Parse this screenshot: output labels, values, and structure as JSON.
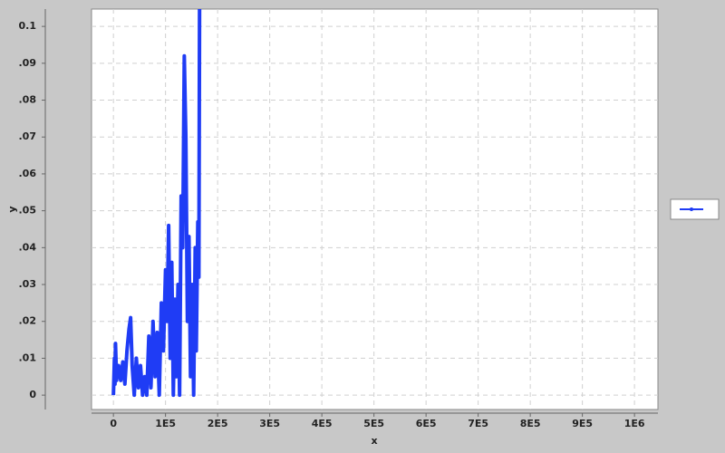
{
  "chart_data": {
    "type": "line",
    "x_label": "x",
    "y_label": "y",
    "x": [
      0,
      2000,
      3000,
      4000,
      6000,
      10000,
      14000,
      18000,
      22000,
      26000,
      30000,
      33000,
      36000,
      40000,
      44000,
      48000,
      52000,
      56000,
      60000,
      64000,
      68000,
      72000,
      76000,
      80000,
      84000,
      88000,
      92000,
      96000,
      100000,
      103000,
      106000,
      109000,
      112000,
      115000,
      118000,
      121000,
      124000,
      127000,
      130000,
      133000,
      136000,
      139000,
      142000,
      145000,
      148000,
      151000,
      154000,
      157000,
      159000,
      162000,
      164000,
      167000
    ],
    "series": [
      {
        "color": "#1f3cf5",
        "values": [
          0,
          0.01,
          0.003,
          0.014,
          0.004,
          0.008,
          0.004,
          0.009,
          0.003,
          0.012,
          0.018,
          0.021,
          0.008,
          0,
          0.01,
          0.002,
          0.008,
          0,
          0.005,
          0,
          0.016,
          0.002,
          0.02,
          0.005,
          0.017,
          0,
          0.025,
          0.012,
          0.034,
          0.02,
          0.046,
          0.01,
          0.036,
          0,
          0.026,
          0.005,
          0.03,
          0,
          0.054,
          0.04,
          0.092,
          0.07,
          0.02,
          0.043,
          0.005,
          0.03,
          0,
          0.04,
          0.012,
          0.047,
          0.032,
          0.2
        ]
      }
    ],
    "xlim": [
      -42000,
      1045000
    ],
    "xticks": [
      0,
      {
        "value": 100000,
        "label": "1E5"
      },
      {
        "value": 200000,
        "label": "2E5"
      },
      {
        "value": 300000,
        "label": "3E5"
      },
      {
        "value": 400000,
        "label": "4E5"
      },
      {
        "value": 500000,
        "label": "5E5"
      },
      {
        "value": 600000,
        "label": "6E5"
      },
      {
        "value": 700000,
        "label": "7E5"
      },
      {
        "value": 800000,
        "label": "8E5"
      },
      {
        "value": 900000,
        "label": "9E5"
      },
      {
        "value": 1000000,
        "label": "1E6"
      }
    ],
    "ylim": [
      -0.0039,
      0.1047
    ],
    "yticks": [
      0,
      {
        "value": 0.01,
        "label": ".01"
      },
      {
        "value": 0.02,
        "label": ".02"
      },
      {
        "value": 0.03,
        "label": ".03"
      },
      {
        "value": 0.04,
        "label": ".04"
      },
      {
        "value": 0.05,
        "label": ".05"
      },
      {
        "value": 0.06,
        "label": ".06"
      },
      {
        "value": 0.07,
        "label": ".07"
      },
      {
        "value": 0.08,
        "label": ".08"
      },
      {
        "value": 0.09,
        "label": ".09"
      },
      0.1
    ],
    "grid": true,
    "legend": "right"
  }
}
